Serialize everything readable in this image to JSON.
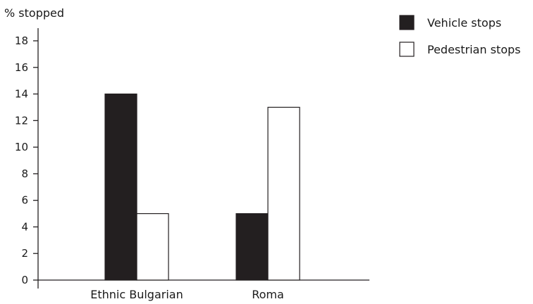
{
  "chart_data": {
    "type": "bar",
    "title": "",
    "xlabel": "",
    "ylabel": "% stopped",
    "ylim": [
      0,
      18
    ],
    "yticks": [
      0,
      2,
      4,
      6,
      8,
      10,
      12,
      14,
      16,
      18
    ],
    "categories": [
      "Ethnic Bulgarian",
      "Roma"
    ],
    "series": [
      {
        "name": "Vehicle stops",
        "values": [
          14,
          5
        ],
        "color": "#231f20"
      },
      {
        "name": "Pedestrian stops",
        "values": [
          5,
          13
        ],
        "color": "#ffffff"
      }
    ],
    "grid": false,
    "legend_position": "top-right"
  }
}
